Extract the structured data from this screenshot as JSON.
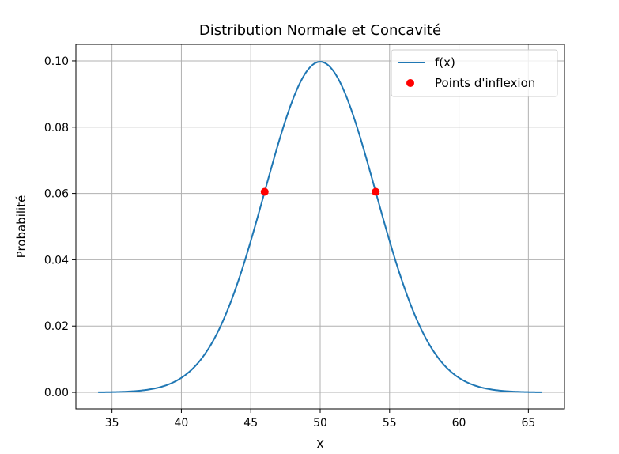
{
  "chart_data": {
    "type": "line",
    "title": "Distribution Normale et Concavité",
    "xlabel": "X",
    "ylabel": "Probabilité",
    "xlim": [
      32.4,
      67.6
    ],
    "ylim": [
      -0.005,
      0.105
    ],
    "xticks": [
      35,
      40,
      45,
      50,
      55,
      60,
      65
    ],
    "yticks": [
      0.0,
      0.02,
      0.04,
      0.06,
      0.08,
      0.1
    ],
    "grid": true,
    "legend_position": "top-right",
    "colors": {
      "line": "#1f77b4",
      "points": "#ff0000",
      "grid": "#b0b0b0"
    },
    "series": [
      {
        "name": "f(x)",
        "kind": "line",
        "distribution": {
          "mean": 50,
          "std": 4
        },
        "x_range": [
          34,
          66
        ]
      },
      {
        "name": "Points d'inflexion",
        "kind": "scatter",
        "points": [
          {
            "x": 46,
            "y": 0.0605
          },
          {
            "x": 54,
            "y": 0.0605
          }
        ]
      }
    ]
  }
}
